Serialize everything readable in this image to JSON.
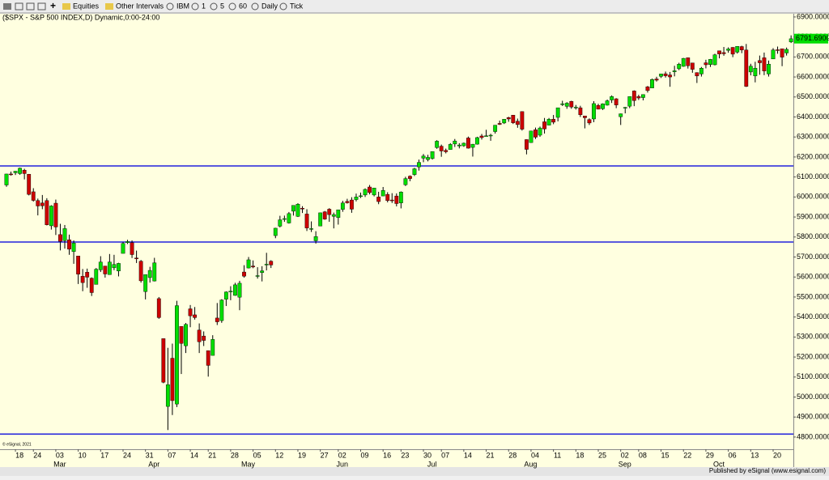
{
  "toolbar": {
    "items": [
      "Equities",
      "Other Intervals",
      "IBM",
      "1",
      "5",
      "60",
      "Daily",
      "Tick"
    ]
  },
  "footer": "Published by eSignal (www.esignal.com)",
  "chart_data": {
    "type": "candlestick",
    "title": "($SPX - S&P 500 INDEX,D) Dynamic,0:00-24:00",
    "copyright": "© eSignal, 2021",
    "up_color": "#00dd00",
    "down_color": "#cc0000",
    "line_color": "#2222dd",
    "ylim": [
      4739,
      6920
    ],
    "yticks": [
      {
        "value": 4800,
        "label": "4800.0000"
      },
      {
        "value": 4900,
        "label": "4900.0000"
      },
      {
        "value": 5000,
        "label": "5000.0000"
      },
      {
        "value": 5100,
        "label": "5100.0000"
      },
      {
        "value": 5200,
        "label": "5200.0000"
      },
      {
        "value": 5300,
        "label": "5300.0000"
      },
      {
        "value": 5400,
        "label": "5400.0000"
      },
      {
        "value": 5500,
        "label": "5500.0000"
      },
      {
        "value": 5600,
        "label": "5600.0000"
      },
      {
        "value": 5700,
        "label": "5700.0000"
      },
      {
        "value": 5800,
        "label": "5800.0000"
      },
      {
        "value": 5900,
        "label": "5900.0000"
      },
      {
        "value": 6000,
        "label": "6000.0000"
      },
      {
        "value": 6100,
        "label": "6100.0000"
      },
      {
        "value": 6200,
        "label": "6200.0000"
      },
      {
        "value": 6300,
        "label": "6300.0000"
      },
      {
        "value": 6400,
        "label": "6400.0000"
      },
      {
        "value": 6500,
        "label": "6500.0000"
      },
      {
        "value": 6600,
        "label": "6600.0000"
      },
      {
        "value": 6700,
        "label": "6700.0000"
      },
      {
        "value": 6800,
        "label": "6800.0000"
      },
      {
        "value": 6900,
        "label": "6900.0000"
      }
    ],
    "last_price": {
      "value": 6791.69,
      "label": "6791.6900"
    },
    "hlines": [
      6155,
      5775,
      4815
    ],
    "categories": [
      null,
      null,
      "18",
      null,
      null,
      null,
      "24",
      null,
      null,
      null,
      null,
      "03",
      null,
      null,
      null,
      null,
      "10",
      null,
      null,
      null,
      null,
      "17",
      null,
      null,
      null,
      null,
      "24",
      null,
      null,
      null,
      null,
      "31",
      null,
      null,
      null,
      null,
      "07",
      null,
      null,
      null,
      null,
      "14",
      null,
      null,
      null,
      "21",
      null,
      null,
      null,
      null,
      "28",
      null,
      null,
      null,
      null,
      "05",
      null,
      null,
      null,
      null,
      "12",
      null,
      null,
      null,
      null,
      "19",
      null,
      null,
      null,
      null,
      "27",
      null,
      null,
      null,
      "02",
      null,
      null,
      null,
      null,
      "09",
      null,
      null,
      null,
      null,
      "16",
      null,
      null,
      null,
      "23",
      null,
      null,
      null,
      null,
      "30",
      null,
      null,
      null,
      "07",
      null,
      null,
      null,
      null,
      "14",
      null,
      null,
      null,
      null,
      "21",
      null,
      null,
      null,
      null,
      "28",
      null,
      null,
      null,
      null,
      "04",
      null,
      null,
      null,
      null,
      "11",
      null,
      null,
      null,
      null,
      "18",
      null,
      null,
      null,
      null,
      "25",
      null,
      null,
      null,
      null,
      "02",
      null,
      null,
      null,
      "08",
      null,
      null,
      null,
      null,
      "15",
      null,
      null,
      null,
      null,
      "22",
      null,
      null,
      null,
      null,
      "29",
      null,
      null,
      null,
      null,
      "06",
      null,
      null,
      null,
      null,
      "13",
      null,
      null,
      null,
      null,
      "20",
      null,
      null,
      null,
      null
    ],
    "months": [
      null,
      null,
      null,
      null,
      null,
      null,
      null,
      null,
      null,
      null,
      null,
      "Mar",
      null,
      null,
      null,
      null,
      null,
      null,
      null,
      null,
      null,
      null,
      null,
      null,
      null,
      null,
      null,
      null,
      null,
      null,
      null,
      null,
      "Apr",
      null,
      null,
      null,
      null,
      null,
      null,
      null,
      null,
      null,
      null,
      null,
      null,
      null,
      null,
      null,
      null,
      null,
      null,
      null,
      null,
      "May",
      null,
      null,
      null,
      null,
      null,
      null,
      null,
      null,
      null,
      null,
      null,
      null,
      null,
      null,
      null,
      null,
      null,
      null,
      null,
      null,
      "Jun",
      null,
      null,
      null,
      null,
      null,
      null,
      null,
      null,
      null,
      null,
      null,
      null,
      null,
      null,
      null,
      null,
      null,
      null,
      null,
      "Jul",
      null,
      null,
      null,
      null,
      null,
      null,
      null,
      null,
      null,
      null,
      null,
      null,
      null,
      null,
      null,
      null,
      null,
      null,
      null,
      null,
      null,
      "Aug",
      null,
      null,
      null,
      null,
      null,
      null,
      null,
      null,
      null,
      null,
      null,
      null,
      null,
      null,
      null,
      null,
      null,
      null,
      null,
      null,
      "Sep",
      null,
      null,
      null,
      null,
      null,
      null,
      null,
      null,
      null,
      null,
      null,
      null,
      null,
      null,
      null,
      null,
      null,
      null,
      null,
      null,
      "Oct",
      null,
      null,
      null,
      null,
      null,
      null,
      null,
      null,
      null,
      null,
      null,
      null,
      null,
      null,
      null,
      null,
      null
    ],
    "open": [
      6060,
      6115,
      6121,
      6117,
      6134,
      6114,
      6026,
      5982,
      5970,
      5982,
      5856,
      5969,
      5812,
      5782,
      5786,
      5727,
      5705,
      5604,
      5624,
      5594,
      5563,
      5636,
      5655,
      5612,
      5646,
      5630,
      5718,
      5772,
      5772,
      5695,
      5679,
      5527,
      5597,
      5580,
      5492,
      5292,
      4953,
      5194,
      4965,
      5353,
      5256,
      5441,
      5411,
      5335,
      5305,
      5232,
      5208,
      5395,
      5382,
      5489,
      5529,
      5508,
      5499,
      5625,
      5645,
      5655,
      5606,
      5622,
      5663,
      5679,
      5807,
      5854,
      5891,
      5870,
      5929,
      5903,
      5944,
      5915,
      5841,
      5781,
      5855,
      5926,
      5939,
      5903,
      5897,
      5938,
      5978,
      5985,
      5987,
      6005,
      6010,
      6050,
      6010,
      6000,
      6005,
      6013,
      5985,
      6005,
      5970,
      6061,
      6104,
      6112,
      6150,
      6194,
      6187,
      6192,
      6247,
      6254,
      6233,
      6237,
      6265,
      6255,
      6256,
      6295,
      6248,
      6264,
      6305,
      6304,
      6306,
      6327,
      6368,
      6370,
      6397,
      6409,
      6379,
      6427,
      6287,
      6272,
      6336,
      6309,
      6376,
      6359,
      6389,
      6398,
      6466,
      6453,
      6478,
      6445,
      6446,
      6405,
      6387,
      6390,
      6458,
      6441,
      6459,
      6485,
      6491,
      6401,
      6444,
      6454,
      6530,
      6502,
      6497,
      6551,
      6545,
      6590,
      6603,
      6616,
      6610,
      6626,
      6641,
      6653,
      6696,
      6670,
      6622,
      6615,
      6671,
      6662,
      6661,
      6731,
      6722,
      6733,
      6748,
      6724,
      6752,
      6735,
      6625,
      6605,
      6682,
      6696,
      6615,
      6690,
      6736,
      6741,
      6720,
      6775
    ],
    "high": [
      6116,
      6127,
      6130,
      6147,
      6141,
      6115,
      6044,
      5992,
      6010,
      5994,
      5959,
      5987,
      5866,
      5860,
      5812,
      5783,
      5705,
      5640,
      5642,
      5598,
      5645,
      5704,
      5655,
      5715,
      5711,
      5671,
      5775,
      5786,
      5783,
      5732,
      5685,
      5613,
      5651,
      5696,
      5500,
      5292,
      5246,
      5267,
      5481,
      5354,
      5370,
      5460,
      5450,
      5368,
      5328,
      5232,
      5309,
      5470,
      5489,
      5528,
      5554,
      5571,
      5581,
      5659,
      5700,
      5683,
      5649,
      5654,
      5721,
      5684,
      5846,
      5906,
      5907,
      5925,
      5958,
      5969,
      5954,
      5939,
      5878,
      5829,
      5922,
      5930,
      5944,
      5922,
      5936,
      5981,
      5991,
      5999,
      6017,
      6022,
      6043,
      6060,
      6045,
      6026,
      6050,
      6024,
      6019,
      6018,
      6028,
      6101,
      6108,
      6146,
      6187,
      6215,
      6211,
      6227,
      6284,
      6262,
      6242,
      6269,
      6290,
      6269,
      6272,
      6302,
      6265,
      6301,
      6315,
      6336,
      6316,
      6360,
      6382,
      6390,
      6401,
      6410,
      6392,
      6428,
      6288,
      6330,
      6347,
      6352,
      6395,
      6395,
      6410,
      6446,
      6481,
      6474,
      6481,
      6460,
      6456,
      6406,
      6393,
      6479,
      6466,
      6468,
      6487,
      6508,
      6494,
      6417,
      6450,
      6502,
      6533,
      6511,
      6513,
      6555,
      6592,
      6601,
      6616,
      6627,
      6625,
      6656,
      6671,
      6695,
      6697,
      6670,
      6623,
      6650,
      6686,
      6690,
      6716,
      6731,
      6750,
      6748,
      6749,
      6754,
      6756,
      6765,
      6666,
      6676,
      6707,
      6722,
      6682,
      6744,
      6752,
      6741,
      6747,
      6808
    ],
    "low": [
      6051,
      6107,
      6110,
      6111,
      6088,
      6008,
      5977,
      5908,
      5939,
      5858,
      5837,
      5810,
      5733,
      5742,
      5711,
      5666,
      5565,
      5529,
      5546,
      5505,
      5563,
      5625,
      5597,
      5611,
      5634,
      5603,
      5718,
      5765,
      5695,
      5670,
      5572,
      5488,
      5572,
      5578,
      5391,
      5069,
      4835,
      4910,
      4950,
      5115,
      5220,
      5349,
      5387,
      5220,
      5255,
      5102,
      5208,
      5360,
      5371,
      5455,
      5484,
      5506,
      5434,
      5597,
      5643,
      5644,
      5592,
      5578,
      5633,
      5645,
      5794,
      5848,
      5876,
      5867,
      5907,
      5900,
      5920,
      5830,
      5825,
      5767,
      5855,
      5886,
      5876,
      5843,
      5862,
      5926,
      5967,
      5921,
      5978,
      5995,
      6000,
      6013,
      6003,
      5964,
      6005,
      5973,
      5970,
      5953,
      5943,
      6055,
      6079,
      6105,
      6132,
      6174,
      6178,
      6187,
      6241,
      6201,
      6218,
      6237,
      6250,
      6243,
      6251,
      6242,
      6202,
      6262,
      6287,
      6303,
      6281,
      6317,
      6360,
      6365,
      6376,
      6365,
      6346,
      6332,
      6213,
      6271,
      6290,
      6301,
      6317,
      6359,
      6364,
      6378,
      6455,
      6441,
      6441,
      6437,
      6400,
      6343,
      6360,
      6374,
      6438,
      6435,
      6457,
      6470,
      6444,
      6360,
      6418,
      6444,
      6454,
      6485,
      6483,
      6522,
      6545,
      6577,
      6595,
      6597,
      6551,
      6603,
      6634,
      6651,
      6642,
      6621,
      6570,
      6602,
      6643,
      6650,
      6658,
      6693,
      6706,
      6721,
      6699,
      6717,
      6719,
      6550,
      6608,
      6573,
      6611,
      6609,
      6602,
      6690,
      6716,
      6654,
      6707,
      6770
    ],
    "close": [
      6115,
      6114,
      6129,
      6144,
      6117,
      6013,
      5983,
      5955,
      5956,
      5861,
      5955,
      5850,
      5778,
      5842,
      5739,
      5770,
      5614,
      5572,
      5599,
      5522,
      5639,
      5675,
      5615,
      5675,
      5663,
      5668,
      5768,
      5777,
      5712,
      5693,
      5581,
      5612,
      5633,
      5671,
      5397,
      5074,
      5062,
      4982,
      5457,
      5268,
      5363,
      5406,
      5397,
      5276,
      5283,
      5158,
      5288,
      5376,
      5485,
      5525,
      5529,
      5561,
      5569,
      5604,
      5686,
      5650,
      5607,
      5631,
      5664,
      5660,
      5844,
      5886,
      5892,
      5917,
      5958,
      5964,
      5940,
      5845,
      5842,
      5802,
      5921,
      5889,
      5912,
      5912,
      5936,
      5970,
      5971,
      5939,
      6000,
      6006,
      6038,
      6022,
      6045,
      5977,
      6033,
      5982,
      5981,
      5967,
      6025,
      6092,
      6092,
      6141,
      6173,
      6205,
      6198,
      6227,
      6279,
      6230,
      6226,
      6263,
      6280,
      6260,
      6269,
      6244,
      6264,
      6297,
      6297,
      6306,
      6309,
      6359,
      6363,
      6389,
      6390,
      6371,
      6362,
      6339,
      6238,
      6330,
      6299,
      6345,
      6340,
      6389,
      6374,
      6446,
      6466,
      6469,
      6450,
      6449,
      6411,
      6396,
      6370,
      6467,
      6439,
      6466,
      6481,
      6502,
      6460,
      6416,
      6448,
      6502,
      6482,
      6495,
      6512,
      6532,
      6587,
      6584,
      6615,
      6606,
      6600,
      6631,
      6664,
      6693,
      6656,
      6638,
      6605,
      6644,
      6661,
      6688,
      6711,
      6715,
      6716,
      6740,
      6714,
      6753,
      6735,
      6553,
      6654,
      6644,
      6671,
      6630,
      6664,
      6735,
      6735,
      6699,
      6738,
      6791
    ]
  }
}
